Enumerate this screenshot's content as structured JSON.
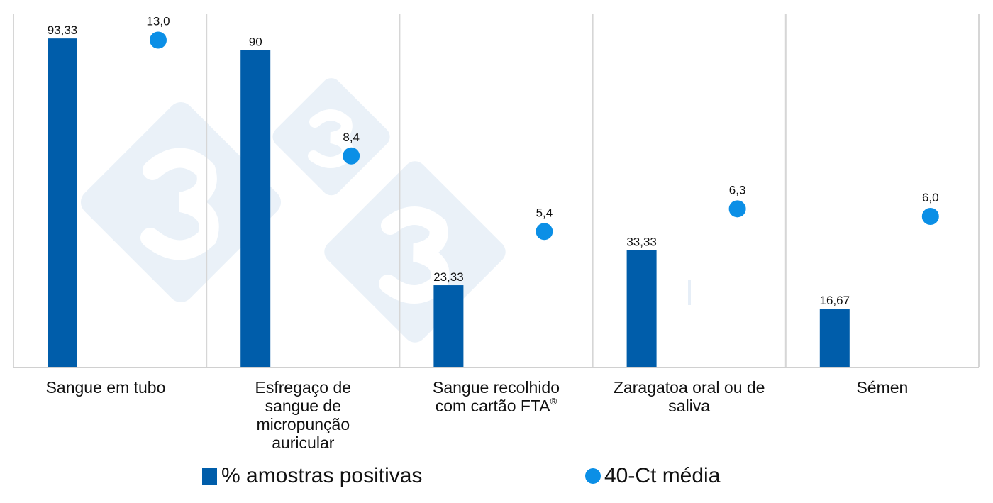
{
  "chart_data": {
    "type": "bar+scatter",
    "categories": [
      [
        "Sangue em tubo"
      ],
      [
        "Esfregaço de",
        "sangue de",
        "micropunção",
        "auricular"
      ],
      [
        "Sangue recolhido",
        "com cartão FTA®"
      ],
      [
        "Zaragatoa oral ou de",
        "saliva"
      ],
      [
        "Sémen"
      ]
    ],
    "series": [
      {
        "name": "% amostras positivas",
        "type": "bar",
        "axis": "primary",
        "color": "#005daa",
        "values": [
          93.33,
          90,
          23.33,
          33.33,
          16.67
        ],
        "labels": [
          "93,33",
          "90",
          "23,33",
          "33,33",
          "16,67"
        ]
      },
      {
        "name": "40-Ct média",
        "type": "scatter",
        "axis": "secondary",
        "color": "#0b8fe6",
        "values": [
          13.0,
          8.4,
          5.4,
          6.3,
          6.0
        ],
        "labels": [
          "13,0",
          "8,4",
          "5,4",
          "6,3",
          "6,0"
        ]
      }
    ],
    "ylim": [
      0,
      100
    ],
    "y2lim": [
      0,
      14
    ],
    "grid": "vertical category separators",
    "legend": "bottom",
    "watermark": "3tres3 | Seró"
  }
}
